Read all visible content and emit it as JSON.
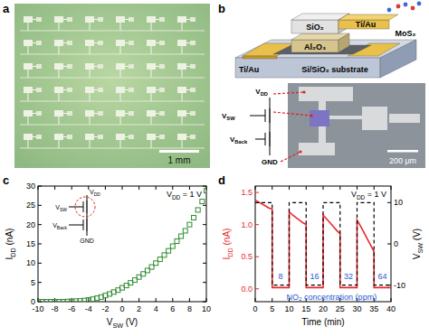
{
  "panels": {
    "a": {
      "letter": "a",
      "scale_bar": "1 mm"
    },
    "b": {
      "letter": "b",
      "layers": [
        "SiO₂",
        "Ti/Au",
        "Al₂O₃",
        "MoS₂",
        "Ti/Au",
        "Si/SiO₂ substrate"
      ],
      "circuit_labels": [
        {
          "text": "V",
          "sub": "DD"
        },
        {
          "text": "V",
          "sub": "SW"
        },
        {
          "text": "V",
          "sub": "Back"
        },
        {
          "text": "GND"
        }
      ],
      "scale_bar": "200 μm"
    }
  },
  "chart_data": [
    {
      "letter": "c",
      "type": "scatter",
      "marker": "square-open",
      "color": "#2e8b2e",
      "x": [
        -10,
        -9.5,
        -9,
        -8.5,
        -8,
        -7.5,
        -7,
        -6.5,
        -6,
        -5.5,
        -5,
        -4.5,
        -4,
        -3.5,
        -3,
        -2.5,
        -2,
        -1.5,
        -1,
        -0.5,
        0,
        0.5,
        1,
        1.5,
        2,
        2.5,
        3,
        3.5,
        4,
        4.5,
        5,
        5.5,
        6,
        6.5,
        7,
        7.5,
        8,
        8.5,
        9,
        9.5,
        10
      ],
      "values": [
        0,
        0,
        0,
        0,
        0,
        0,
        0,
        0.05,
        0.1,
        0.15,
        0.2,
        0.3,
        0.45,
        0.65,
        0.9,
        1.2,
        1.6,
        2.0,
        2.5,
        3.0,
        3.6,
        4.2,
        4.9,
        5.6,
        6.4,
        7.2,
        8.1,
        9.0,
        10.0,
        11.0,
        12.1,
        13.2,
        14.4,
        15.7,
        17.0,
        18.4,
        20.0,
        21.8,
        23.8,
        26.0,
        28.8
      ],
      "xlim": [
        -10,
        10
      ],
      "xticks": [
        -10,
        -8,
        -6,
        -4,
        -2,
        0,
        2,
        4,
        6,
        8,
        10
      ],
      "ylim": [
        0,
        30
      ],
      "yticks": [
        0,
        5,
        10,
        15,
        20,
        25,
        30
      ],
      "x_label": {
        "text": "V",
        "sub": "SW",
        "rest": " (V)"
      },
      "y_label": {
        "text": "I",
        "sub": "DD",
        "rest": " (nA)"
      },
      "note": {
        "text": "V",
        "sub": "DD",
        "rest": " = 1 V"
      },
      "inset_labels": [
        {
          "text": "V",
          "sub": "DD"
        },
        {
          "text": "V",
          "sub": "SW"
        },
        {
          "text": "V",
          "sub": "Back"
        },
        {
          "text": "GND"
        }
      ]
    },
    {
      "letter": "d",
      "type": "line",
      "series": [
        {
          "color": "#e8282d",
          "line_style": "solid",
          "x": [
            0,
            1,
            2,
            3,
            4,
            5,
            5,
            10,
            10,
            11,
            12,
            13,
            14,
            15,
            15,
            20,
            20,
            21,
            22,
            23,
            24,
            25,
            25,
            30,
            30,
            31,
            32,
            33,
            34,
            35,
            35,
            40
          ],
          "values": [
            1.38,
            1.35,
            1.32,
            1.29,
            1.26,
            1.24,
            0.02,
            0.02,
            1.2,
            1.15,
            1.11,
            1.07,
            1.03,
            1.0,
            0.02,
            0.02,
            1.15,
            1.09,
            1.03,
            0.97,
            0.91,
            0.86,
            0.02,
            0.02,
            1.07,
            0.98,
            0.88,
            0.78,
            0.68,
            0.58,
            0.02,
            0.02
          ]
        },
        {
          "color": "#000000",
          "line_style": "dashed",
          "axis": "y2",
          "x": [
            0,
            5,
            5,
            10,
            10,
            15,
            15,
            20,
            20,
            25,
            25,
            30,
            30,
            35,
            35,
            40
          ],
          "values": [
            10,
            10,
            -10,
            -10,
            10,
            10,
            -10,
            -10,
            10,
            10,
            -10,
            -10,
            10,
            10,
            -10,
            -10
          ]
        }
      ],
      "xlim": [
        0,
        40
      ],
      "xticks": [
        0,
        5,
        10,
        15,
        20,
        25,
        30,
        35,
        40
      ],
      "ylim": [
        -0.2,
        1.6
      ],
      "yticks": [
        {
          "value": 0,
          "label": "0.0"
        },
        0.5,
        {
          "value": 1,
          "label": "1.0"
        },
        1.5
      ],
      "y2lim": [
        -14,
        14
      ],
      "y2ticks": [
        -10,
        0,
        10
      ],
      "x_label": {
        "text": "Time (min)"
      },
      "y_label": {
        "text": "I",
        "sub": "DD",
        "rest": " (nA)"
      },
      "y2_label": {
        "text": "V",
        "sub": "SW",
        "rest": " (V)"
      },
      "note": {
        "text": "V",
        "sub": "DD",
        "rest": " = 1 V"
      },
      "annotations": [
        {
          "text": "8",
          "x": 7.5,
          "y": 0.15,
          "color": "#2a5ad6"
        },
        {
          "text": "16",
          "x": 17.5,
          "y": 0.15,
          "color": "#2a5ad6"
        },
        {
          "text": "32",
          "x": 27.5,
          "y": 0.15,
          "color": "#2a5ad6"
        },
        {
          "text": "64",
          "x": 37.5,
          "y": 0.15,
          "color": "#2a5ad6"
        },
        {
          "text": "NO₂ concentration (ppm)",
          "x": 22.5,
          "y": -0.17,
          "color": "#2a5ad6"
        }
      ]
    }
  ]
}
